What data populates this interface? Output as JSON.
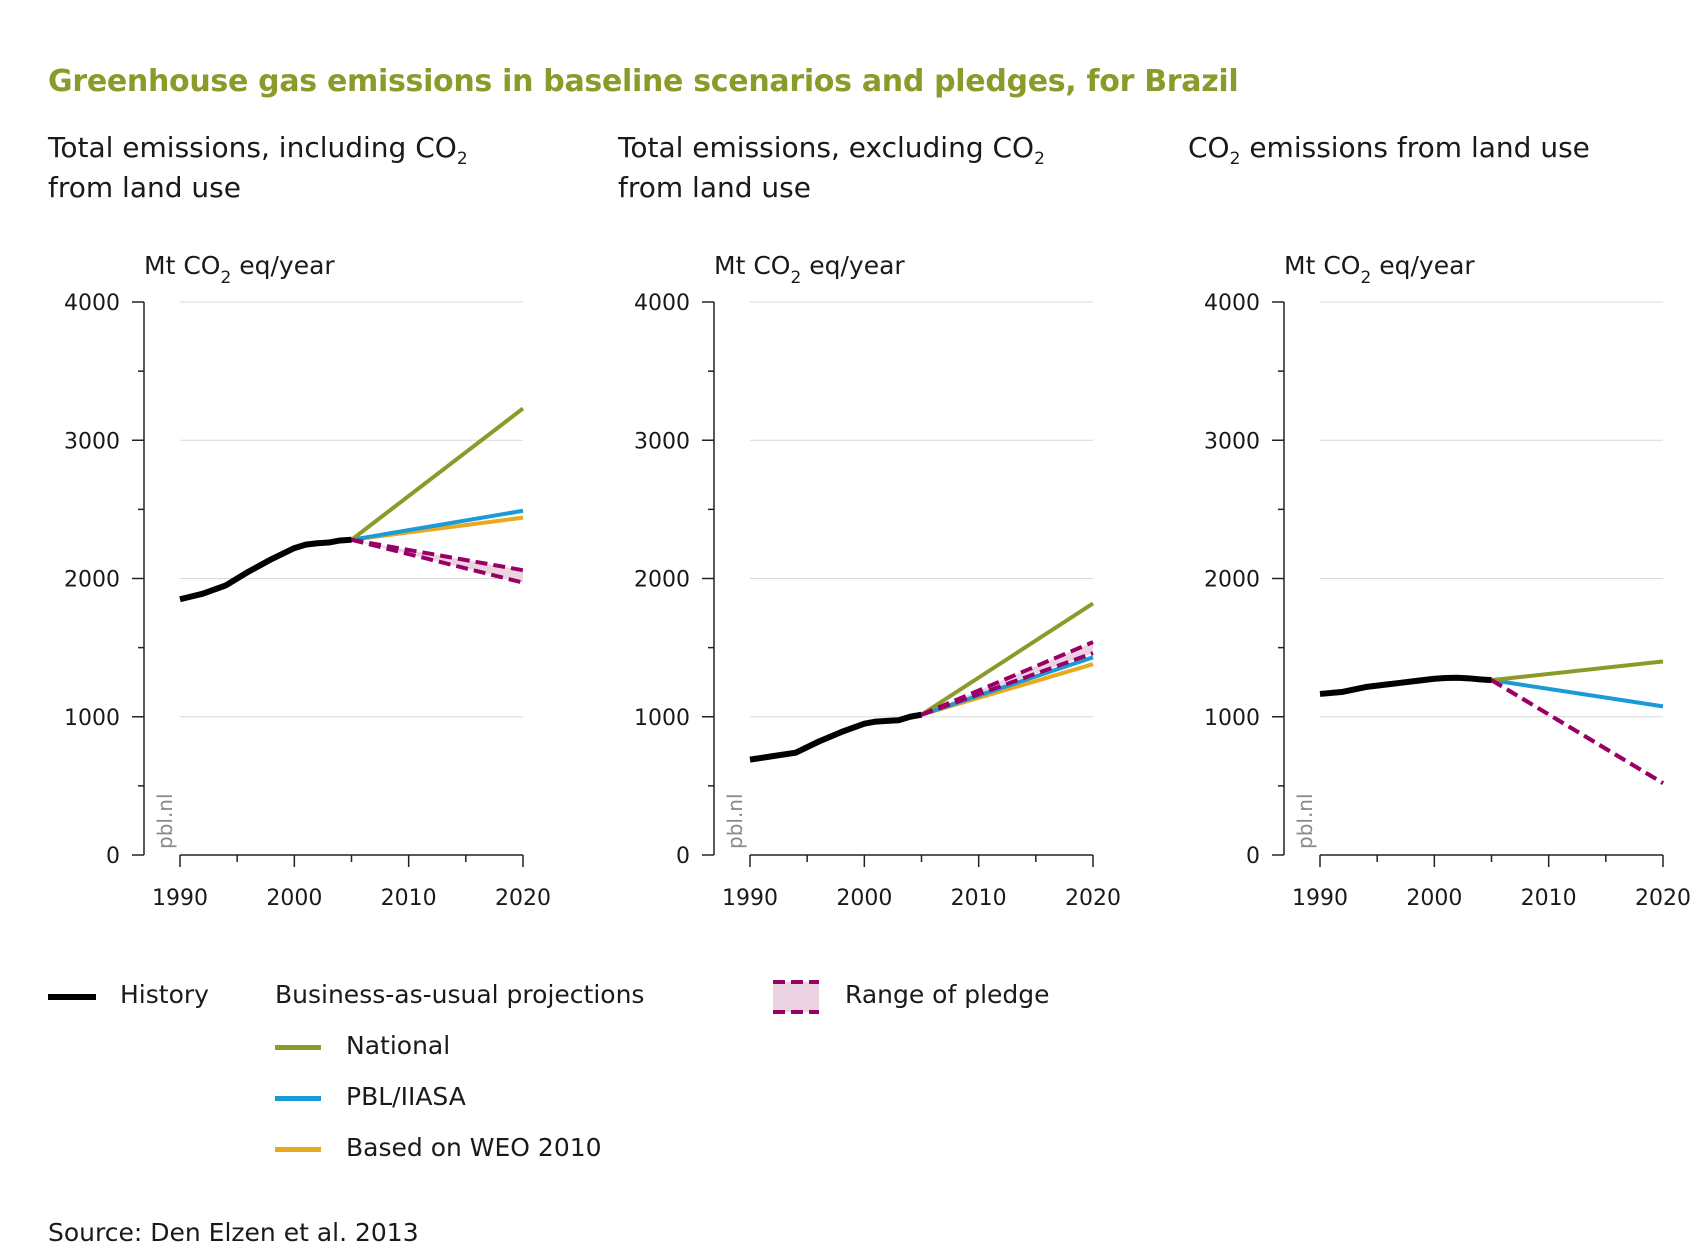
{
  "title": "Greenhouse gas emissions in baseline scenarios and pledges, for Brazil",
  "source": "Source: Den Elzen et al. 2013",
  "watermark": "pbl.nl",
  "colors": {
    "history": "#000000",
    "national": "#8c9a2a",
    "pbl_iiasa": "#1a9ad6",
    "weo": "#e8a91e",
    "pledge": "#990066",
    "pledge_fill": "#ecd3e2"
  },
  "panels": [
    {
      "title_pre": "Total emissions, including CO",
      "title_sub": "2",
      "title_post": "from land use"
    },
    {
      "title_pre": "Total emissions, excluding CO",
      "title_sub": "2",
      "title_post": "from land use"
    },
    {
      "title_pre": "CO",
      "title_sub": "2",
      "title_post": " emissions from land use"
    }
  ],
  "legend": {
    "history": "History",
    "bau_heading": "Business-as-usual projections",
    "national": "National",
    "pbl_iiasa": "PBL/IIASA",
    "weo": "Based on WEO 2010",
    "pledge": "Range of pledge"
  },
  "chart_data": [
    {
      "type": "line",
      "title": "Total emissions, including CO2 from land use",
      "ylabel": "Mt CO2 eq/year",
      "xlim": [
        1990,
        2020
      ],
      "ylim": [
        0,
        4000
      ],
      "xticks": [
        1990,
        2000,
        2010,
        2020
      ],
      "yticks": [
        0,
        1000,
        2000,
        3000,
        4000
      ],
      "grid": true,
      "history": {
        "x": [
          1990,
          1992,
          1994,
          1996,
          1998,
          2000,
          2001,
          2002,
          2003,
          2004,
          2005
        ],
        "y": [
          1850,
          1890,
          1950,
          2050,
          2140,
          2220,
          2245,
          2255,
          2260,
          2275,
          2280
        ]
      },
      "series": [
        {
          "name": "National",
          "x": [
            2005,
            2020
          ],
          "y": [
            2280,
            3230
          ]
        },
        {
          "name": "PBL/IIASA",
          "x": [
            2005,
            2020
          ],
          "y": [
            2280,
            2490
          ]
        },
        {
          "name": "Based on WEO 2010",
          "x": [
            2005,
            2020
          ],
          "y": [
            2280,
            2440
          ]
        }
      ],
      "pledge": {
        "x": [
          2005,
          2020
        ],
        "upper": [
          2280,
          2060
        ],
        "lower": [
          2280,
          1970
        ]
      }
    },
    {
      "type": "line",
      "title": "Total emissions, excluding CO2 from land use",
      "ylabel": "Mt CO2 eq/year",
      "xlim": [
        1990,
        2020
      ],
      "ylim": [
        0,
        4000
      ],
      "xticks": [
        1990,
        2000,
        2010,
        2020
      ],
      "yticks": [
        0,
        1000,
        2000,
        3000,
        4000
      ],
      "grid": true,
      "history": {
        "x": [
          1990,
          1992,
          1994,
          1996,
          1998,
          2000,
          2001,
          2002,
          2003,
          2004,
          2005
        ],
        "y": [
          690,
          715,
          740,
          820,
          890,
          950,
          965,
          970,
          975,
          1000,
          1015
        ]
      },
      "series": [
        {
          "name": "National",
          "x": [
            2005,
            2020
          ],
          "y": [
            1015,
            1820
          ]
        },
        {
          "name": "PBL/IIASA",
          "x": [
            2005,
            2020
          ],
          "y": [
            1015,
            1430
          ]
        },
        {
          "name": "Based on WEO 2010",
          "x": [
            2005,
            2020
          ],
          "y": [
            1015,
            1380
          ]
        }
      ],
      "pledge": {
        "x": [
          2005,
          2020
        ],
        "upper": [
          1015,
          1540
        ],
        "lower": [
          1015,
          1460
        ]
      }
    },
    {
      "type": "line",
      "title": "CO2 emissions from land use",
      "ylabel": "Mt CO2 eq/year",
      "xlim": [
        1990,
        2020
      ],
      "ylim": [
        0,
        4000
      ],
      "xticks": [
        1990,
        2000,
        2010,
        2020
      ],
      "yticks": [
        0,
        1000,
        2000,
        3000,
        4000
      ],
      "grid": true,
      "history": {
        "x": [
          1990,
          1992,
          1994,
          1996,
          1998,
          2000,
          2001,
          2002,
          2003,
          2004,
          2005
        ],
        "y": [
          1165,
          1180,
          1215,
          1235,
          1255,
          1275,
          1280,
          1282,
          1278,
          1270,
          1265
        ]
      },
      "series": [
        {
          "name": "National",
          "x": [
            2005,
            2020
          ],
          "y": [
            1265,
            1400
          ]
        },
        {
          "name": "PBL/IIASA",
          "x": [
            2005,
            2020
          ],
          "y": [
            1265,
            1075
          ]
        }
      ],
      "pledge": {
        "x": [
          2005,
          2020
        ],
        "upper": [
          1265,
          520
        ],
        "lower": [
          1265,
          520
        ]
      }
    }
  ]
}
